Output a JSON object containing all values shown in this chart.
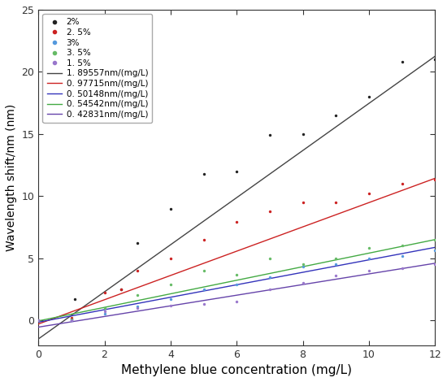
{
  "series": [
    {
      "label_dot": "2%",
      "label_line": "1. 89557nm/(mg/L)",
      "dot_color": "#222222",
      "line_color": "#444444",
      "slope": 1.89557,
      "intercept": -1.5,
      "data_x": [
        0,
        1.0,
        1.1,
        2.5,
        3.0,
        4.0,
        5.0,
        6.0,
        7.0,
        8.0,
        9.0,
        10.0,
        11.0,
        12.0
      ],
      "data_y": [
        0,
        0.1,
        1.7,
        2.5,
        6.2,
        9.0,
        11.8,
        12.0,
        14.9,
        15.0,
        16.5,
        18.0,
        20.8,
        21.0
      ]
    },
    {
      "label_dot": "2. 5%",
      "label_line": "0. 97715nm/(mg/L)",
      "dot_color": "#cc2222",
      "line_color": "#cc2222",
      "slope": 0.97715,
      "intercept": -0.3,
      "data_x": [
        0,
        1.0,
        2.0,
        2.5,
        3.0,
        4.0,
        5.0,
        6.0,
        7.0,
        8.0,
        9.0,
        10.0,
        11.0,
        12.0
      ],
      "data_y": [
        0,
        0.2,
        2.2,
        2.5,
        4.0,
        5.0,
        6.5,
        7.9,
        8.8,
        9.5,
        9.5,
        10.2,
        11.0,
        11.3
      ]
    },
    {
      "label_dot": "3%",
      "label_line": "0. 50148nm/(mg/L)",
      "dot_color": "#5599dd",
      "line_color": "#3333bb",
      "slope": 0.50148,
      "intercept": -0.15,
      "data_x": [
        0,
        1.0,
        2.0,
        3.0,
        4.0,
        5.0,
        6.0,
        7.0,
        8.0,
        9.0,
        10.0,
        11.0,
        12.0
      ],
      "data_y": [
        0,
        0.0,
        0.5,
        1.1,
        1.7,
        2.5,
        2.9,
        3.5,
        4.3,
        4.5,
        5.0,
        5.2,
        5.6
      ]
    },
    {
      "label_dot": "3. 5%",
      "label_line": "0. 54542nm/(mg/L)",
      "dot_color": "#66bb66",
      "line_color": "#44aa44",
      "slope": 0.54542,
      "intercept": -0.05,
      "data_x": [
        0,
        1.0,
        2.0,
        3.0,
        4.0,
        5.0,
        6.0,
        7.0,
        8.0,
        9.0,
        10.0,
        11.0,
        12.0
      ],
      "data_y": [
        0,
        0.1,
        1.0,
        2.0,
        2.9,
        4.0,
        3.7,
        5.0,
        4.5,
        5.0,
        5.8,
        6.0,
        6.5
      ]
    },
    {
      "label_dot": "1. 5%",
      "label_line": "0. 42831nm/(mg/L)",
      "dot_color": "#9977cc",
      "line_color": "#6644aa",
      "slope": 0.42831,
      "intercept": -0.55,
      "data_x": [
        0,
        1.0,
        2.0,
        3.0,
        4.0,
        5.0,
        6.0,
        7.0,
        8.0,
        9.0,
        10.0,
        11.0,
        12.0
      ],
      "data_y": [
        0,
        0.0,
        0.7,
        1.0,
        1.2,
        1.3,
        1.5,
        2.5,
        3.0,
        3.6,
        4.0,
        4.2,
        4.5
      ]
    }
  ],
  "xlim": [
    0,
    12
  ],
  "ylim": [
    -2,
    25
  ],
  "xticks": [
    0,
    2,
    4,
    6,
    8,
    10,
    12
  ],
  "yticks": [
    0,
    5,
    10,
    15,
    20,
    25
  ],
  "xlabel": "Methylene blue concentration (mg/L)",
  "ylabel": "Wavelength shift/nm (nm)",
  "figsize": [
    5.5,
    4.7
  ],
  "dpi": 100,
  "background_color": "#ffffff"
}
